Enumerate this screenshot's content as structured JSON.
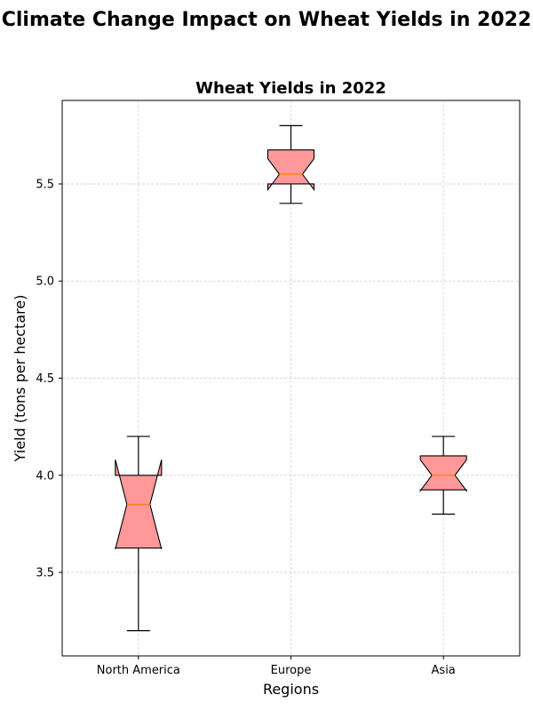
{
  "figure": {
    "suptitle": "Climate Change Impact on Wheat Yields in 2022"
  },
  "chart_data": {
    "type": "boxplot",
    "title": "Wheat Yields in 2022",
    "xlabel": "Regions",
    "ylabel": "Yield (tons per hectare)",
    "categories": [
      "North America",
      "Europe",
      "Asia"
    ],
    "boxes": [
      {
        "category": "North America",
        "whisker_low": 3.2,
        "q1": 3.625,
        "median": 3.85,
        "q3": 4.0,
        "whisker_high": 4.2,
        "notch_low": 3.62,
        "notch_high": 4.08
      },
      {
        "category": "Europe",
        "whisker_low": 5.4,
        "q1": 5.5,
        "median": 5.55,
        "q3": 5.675,
        "whisker_high": 5.8,
        "notch_low": 5.47,
        "notch_high": 5.63
      },
      {
        "category": "Asia",
        "whisker_low": 3.8,
        "q1": 3.925,
        "median": 4.0,
        "q3": 4.1,
        "whisker_high": 4.2,
        "notch_low": 3.92,
        "notch_high": 4.08
      }
    ],
    "ylim": [
      3.07,
      5.93
    ],
    "yticks": [
      3.5,
      4.0,
      4.5,
      5.0,
      5.5
    ],
    "ytick_labels": [
      "3.5",
      "4.0",
      "4.5",
      "5.0",
      "5.5"
    ],
    "grid": true,
    "notched": true,
    "colors": {
      "box_fill": "#ff9999",
      "box_edge": "#000000",
      "median": "#ff7f0e",
      "grid": "#cccccc"
    }
  }
}
